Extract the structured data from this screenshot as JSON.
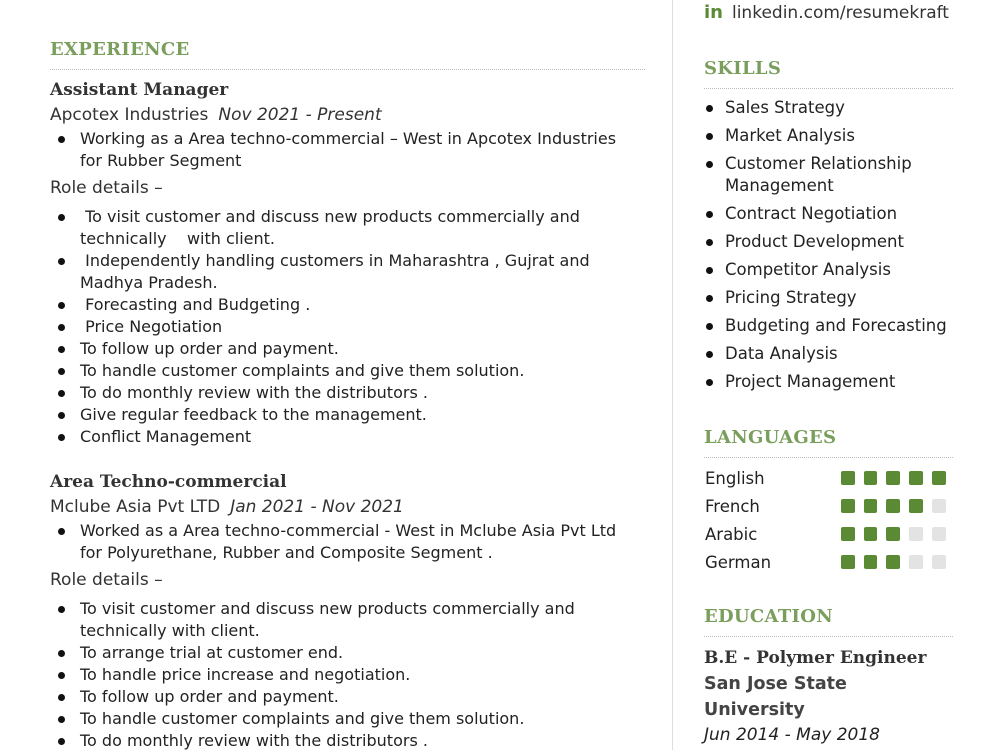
{
  "contact": {
    "linkedin": "linkedin.com/resumekraft",
    "linkedin_icon": "linkedin-icon"
  },
  "experience": {
    "heading": "EXPERIENCE",
    "jobs": [
      {
        "title": "Assistant Manager",
        "company": "Apcotex Industries",
        "dates": "Nov 2021 - Present",
        "summary": [
          "Working as a Area techno-commercial – West in Apcotex Industries for Rubber Segment"
        ],
        "role_label": "Role details –",
        "details": [
          " To visit customer and discuss new products commercially and technically    with client.",
          " Independently handling customers in Maharashtra , Gujrat and Madhya Pradesh.",
          " Forecasting and Budgeting .",
          " Price Negotiation",
          "To follow up order and payment.",
          "To handle customer complaints and give them solution.",
          "To do monthly review with the distributors .",
          "Give regular feedback to the management.",
          "Conflict Management"
        ]
      },
      {
        "title": "Area Techno-commercial",
        "company": "Mclube Asia Pvt LTD",
        "dates": "Jan 2021 - Nov 2021",
        "summary": [
          "Worked as a Area techno-commercial - West in Mclube Asia Pvt Ltd for Polyurethane, Rubber and Composite Segment ."
        ],
        "role_label": "Role details –",
        "details": [
          "To visit customer and discuss new products commercially and technically with client.",
          "To arrange trial at customer end.",
          "To handle price increase and negotiation.",
          "To follow up order and payment.",
          "To handle customer complaints and give them solution.",
          "To do monthly review with the distributors ."
        ]
      }
    ]
  },
  "skills": {
    "heading": "SKILLS",
    "items": [
      "Sales Strategy",
      "Market Analysis",
      "Customer Relationship Management",
      "Contract Negotiation",
      "Product Development",
      "Competitor Analysis",
      "Pricing Strategy",
      "Budgeting and Forecasting",
      "Data Analysis",
      "Project Management"
    ]
  },
  "languages": {
    "heading": "LANGUAGES",
    "max": 5,
    "accent": "#5a8a34",
    "items": [
      {
        "name": "English",
        "level": 5
      },
      {
        "name": "French",
        "level": 4
      },
      {
        "name": "Arabic",
        "level": 3
      },
      {
        "name": "German",
        "level": 3
      }
    ]
  },
  "education": {
    "heading": "EDUCATION",
    "degree": "B.E - Polymer Engineer",
    "school": "San Jose State University",
    "dates": "Jun 2014 - May 2018"
  },
  "colors": {
    "heading": "#7a9e5c",
    "accent": "#5a8a34"
  }
}
